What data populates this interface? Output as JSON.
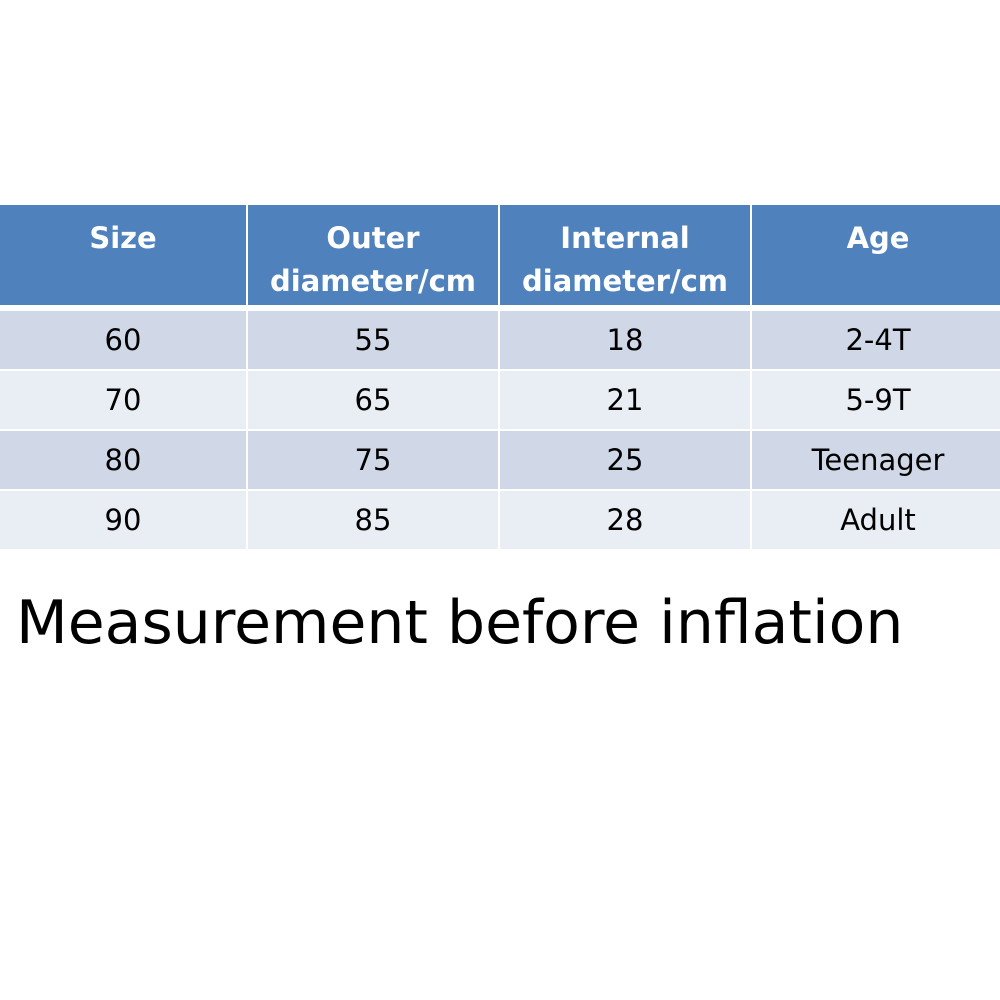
{
  "table": {
    "header": [
      "Size",
      "Outer diameter/cm",
      "Internal diameter/cm",
      "Age"
    ],
    "rows": [
      [
        60,
        55,
        18,
        "2-4T"
      ],
      [
        70,
        65,
        21,
        "5-9T"
      ],
      [
        80,
        75,
        25,
        "Teenager"
      ],
      [
        90,
        85,
        28,
        "Adult"
      ]
    ]
  },
  "caption": "Measurement before inflation"
}
